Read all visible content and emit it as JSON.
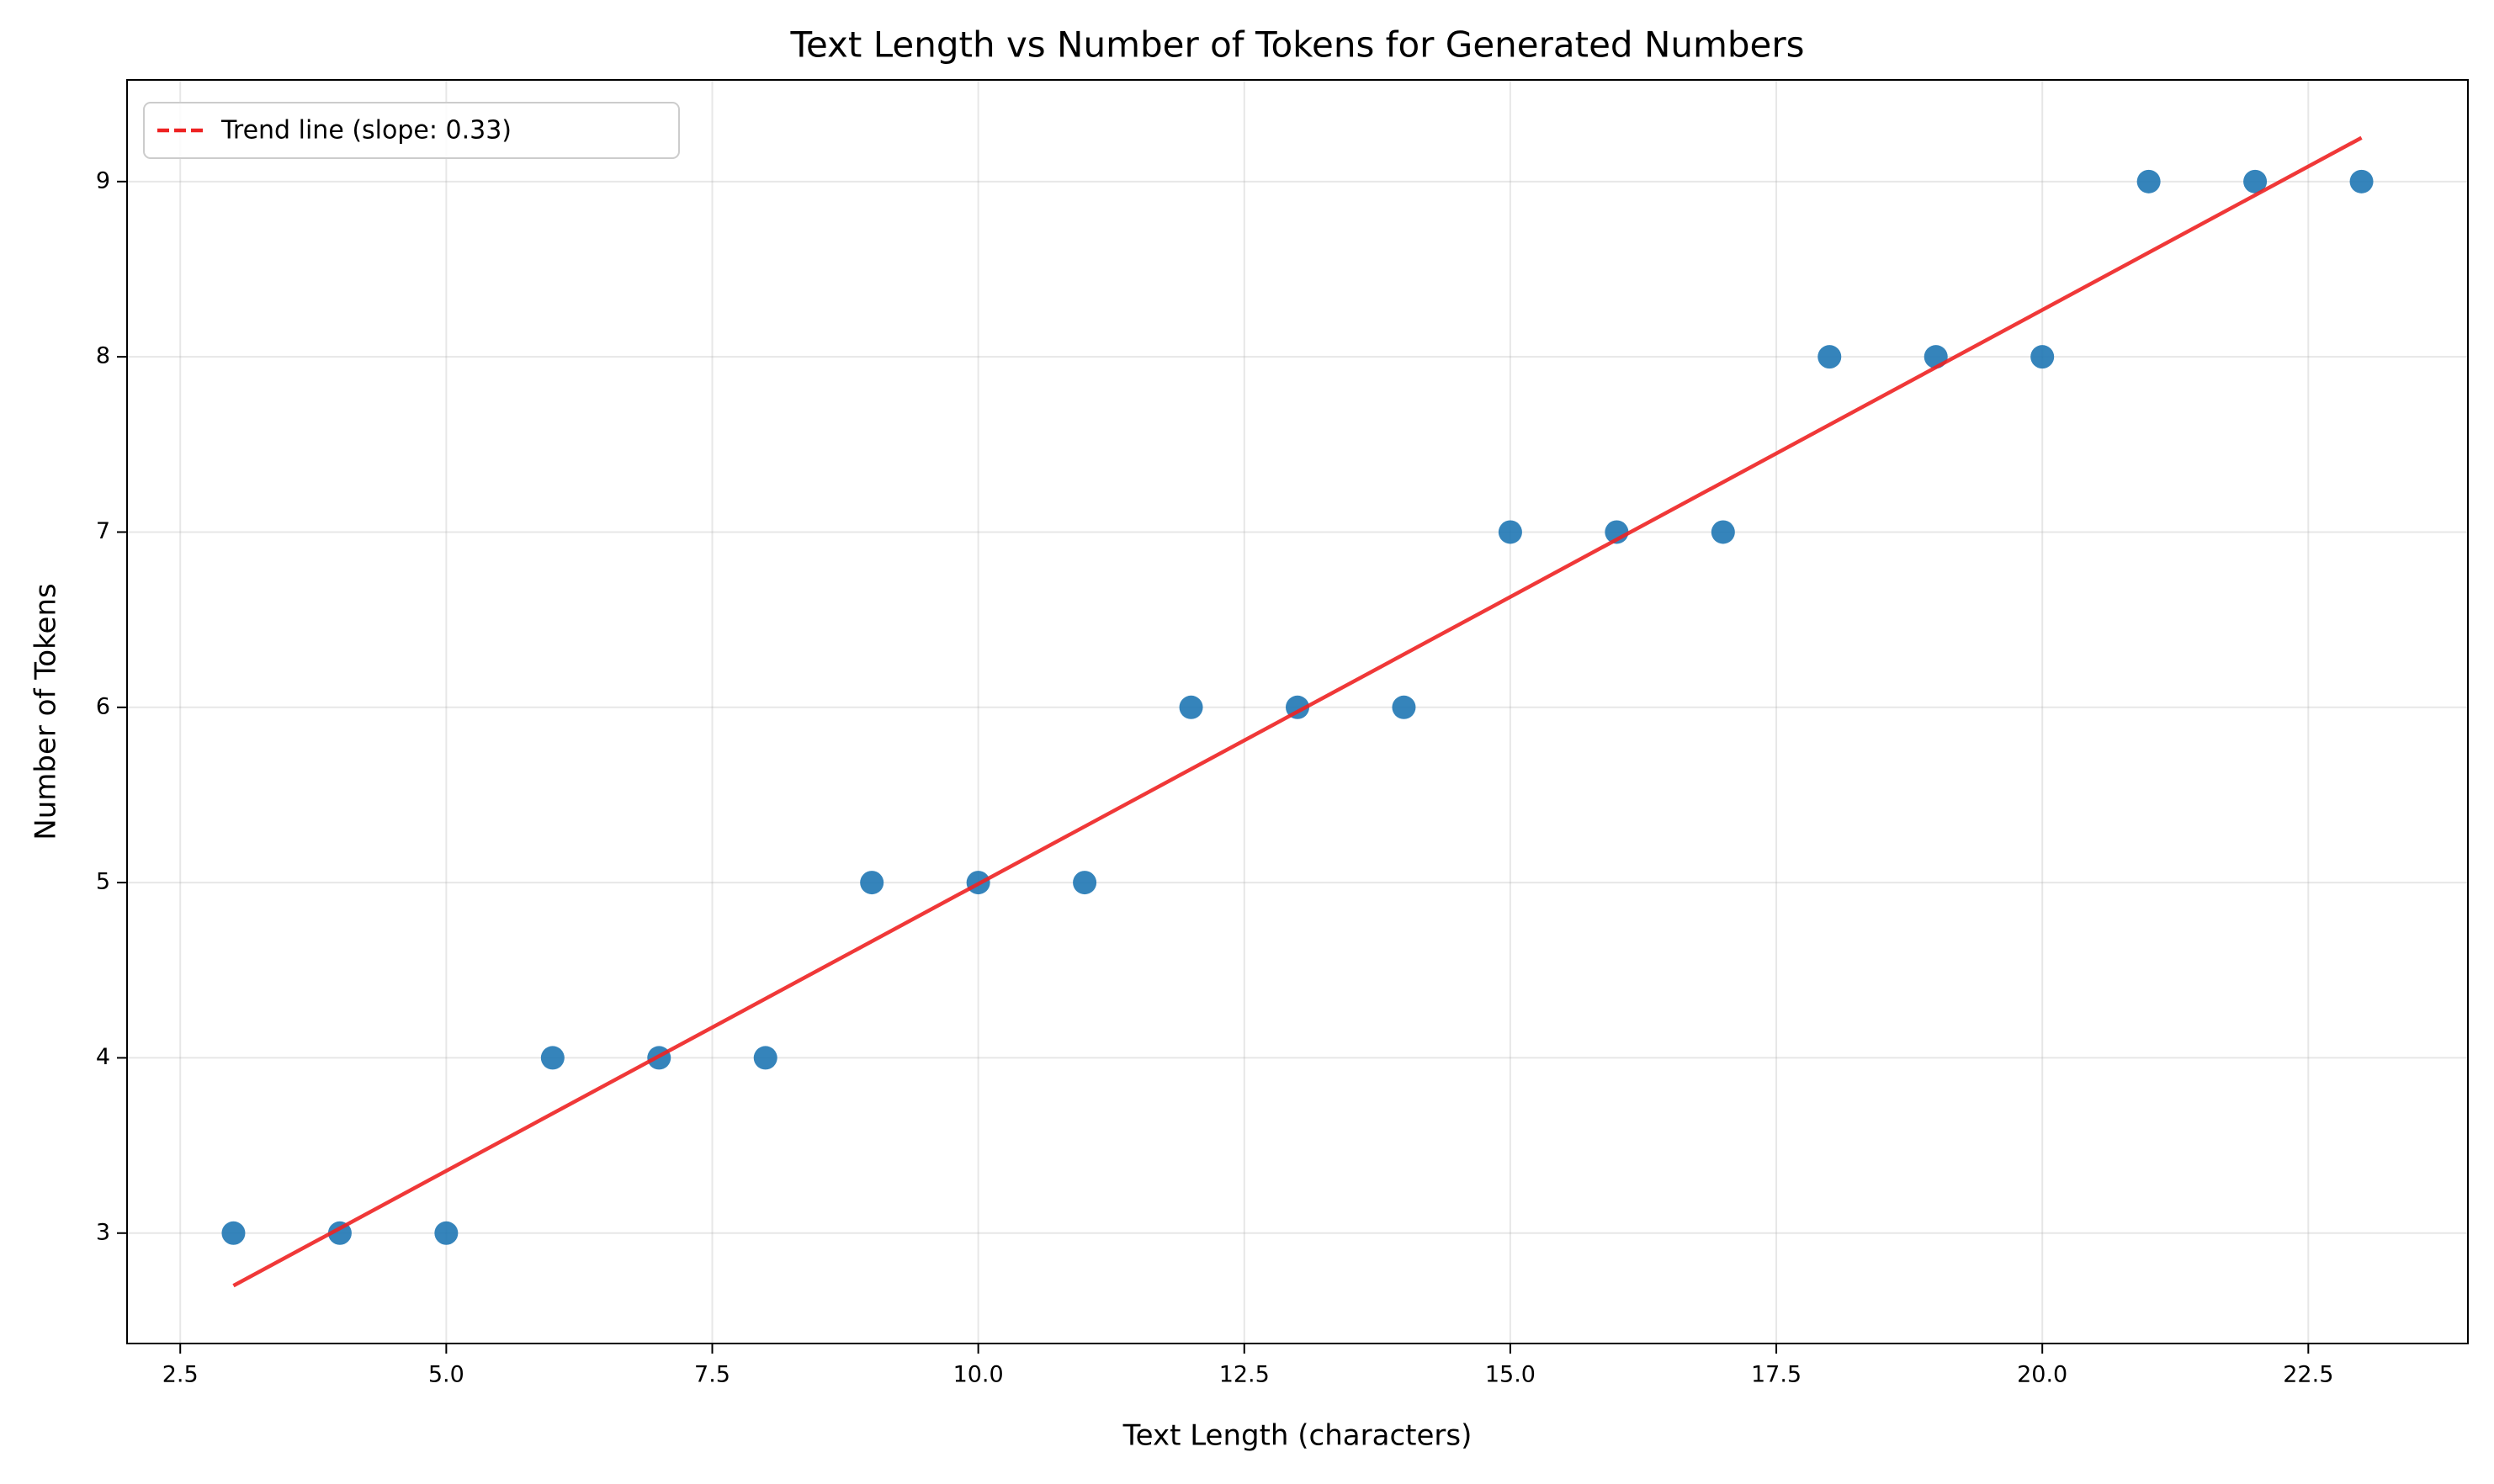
{
  "chart_data": {
    "type": "scatter",
    "title": "Text Length vs Number of Tokens for Generated Numbers",
    "xlabel": "Text Length (characters)",
    "ylabel": "Number of Tokens",
    "x": [
      3,
      4,
      5,
      6,
      7,
      8,
      9,
      10,
      11,
      12,
      13,
      14,
      15,
      16,
      17,
      18,
      19,
      20,
      21,
      22,
      23
    ],
    "values": [
      3,
      3,
      3,
      4,
      4,
      4,
      5,
      5,
      5,
      6,
      6,
      6,
      7,
      7,
      7,
      8,
      8,
      8,
      9,
      9,
      9
    ],
    "color": "#1f77b4",
    "trend": {
      "name": "Trend line (slope: 0.33)",
      "color": "#ee2222",
      "x": [
        3,
        23
      ],
      "values": [
        2.7,
        9.25
      ]
    },
    "xlim": [
      2,
      24
    ],
    "ylim": [
      2.37,
      9.58
    ],
    "xticks": [
      2.5,
      {
        "value": 5,
        "label": "5.0"
      },
      7.5,
      {
        "value": 10,
        "label": "10.0"
      },
      12.5,
      {
        "value": 15,
        "label": "15.0"
      },
      17.5,
      {
        "value": 20,
        "label": "20.0"
      },
      22.5
    ],
    "yticks": [
      3,
      4,
      5,
      6,
      7,
      8,
      9
    ],
    "grid": true,
    "legend": "upper left"
  }
}
